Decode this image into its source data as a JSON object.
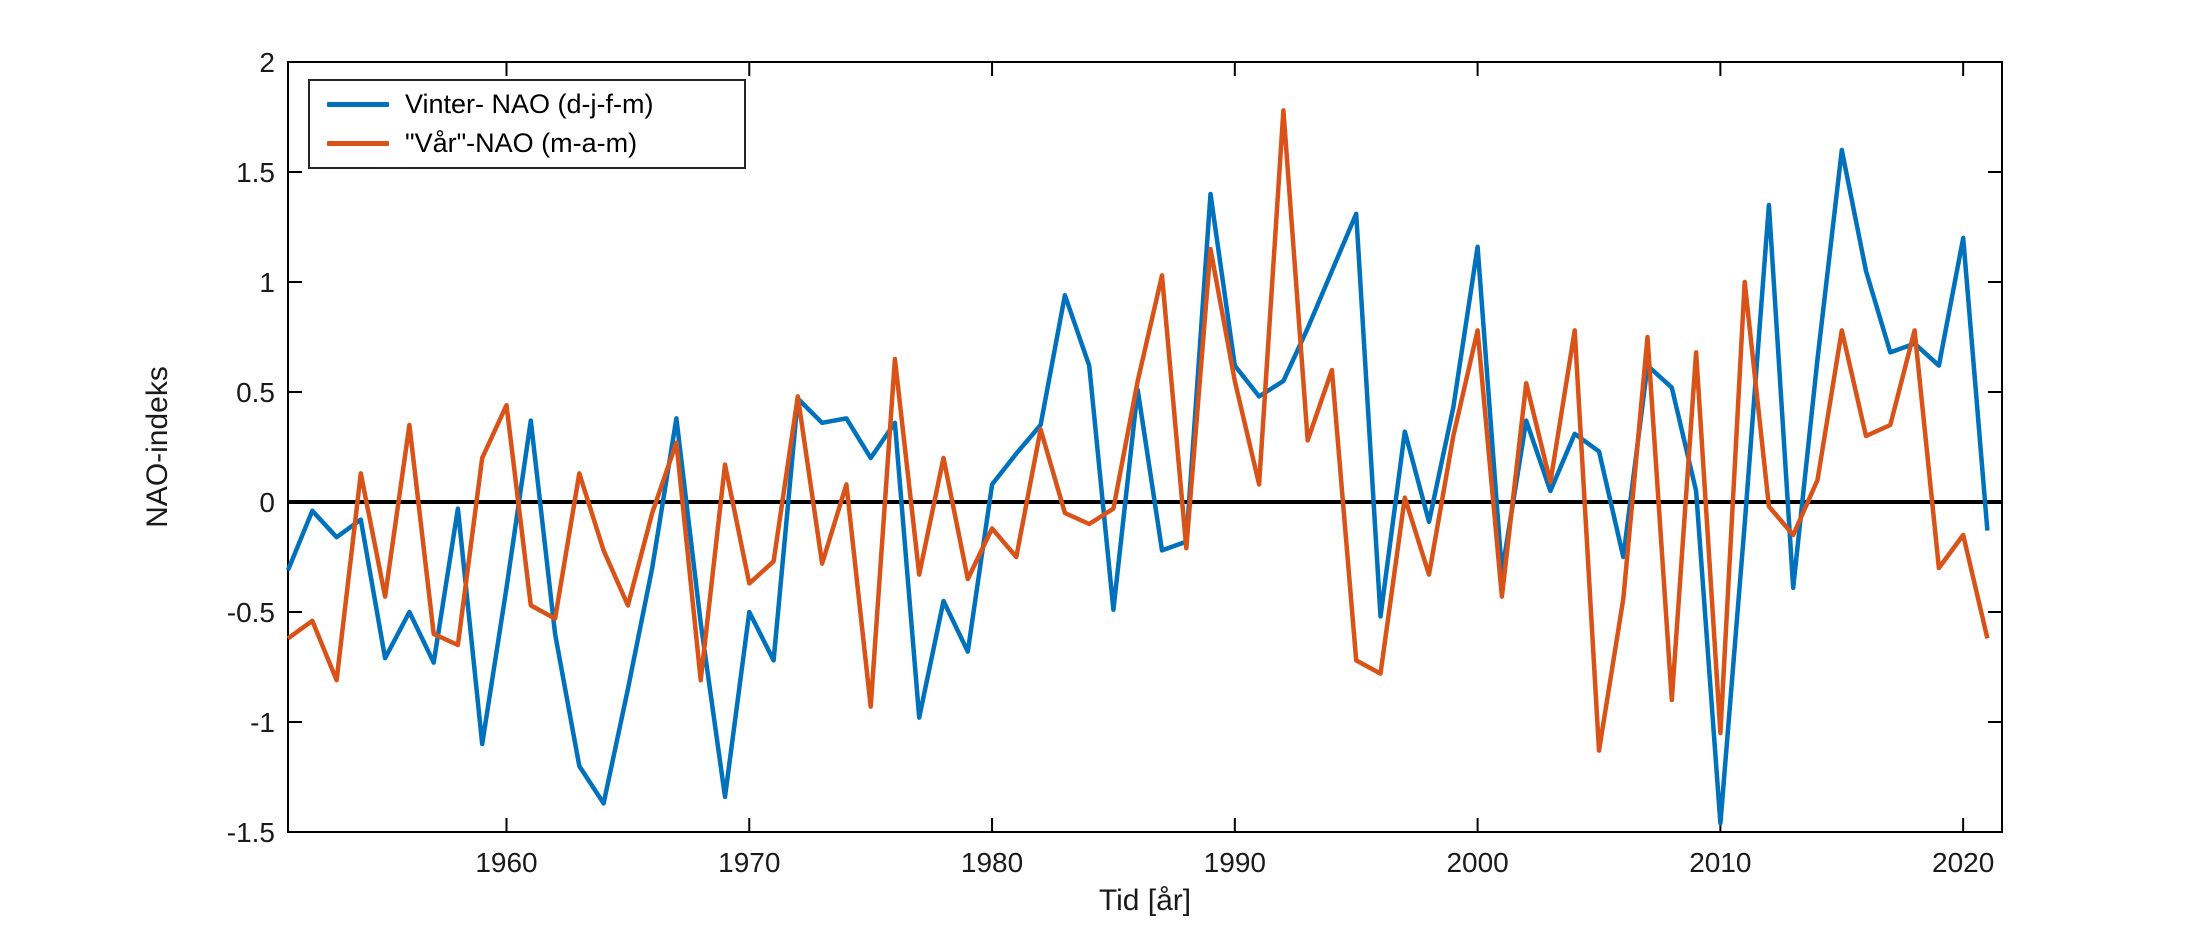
{
  "figure": {
    "background": "#ffffff",
    "xlabel": "Tid [år]",
    "ylabel": "NAO-indeks"
  },
  "legend": {
    "position": "top-left",
    "entries": [
      {
        "label": "Vinter- NAO (d-j-f-m)",
        "color": "#0072BD"
      },
      {
        "label": "\"Vår\"-NAO (m-a-m)",
        "color": "#D95319"
      }
    ]
  },
  "chart_data": {
    "type": "line",
    "title": "",
    "xlabel": "Tid [år]",
    "ylabel": "NAO-indeks",
    "xlim": [
      1951,
      2021.6
    ],
    "ylim": [
      -1.5,
      2
    ],
    "xticks": [
      1960,
      1970,
      1980,
      1990,
      2000,
      2010,
      2020
    ],
    "yticks": [
      -1.5,
      -1,
      -0.5,
      0,
      0.5,
      1,
      1.5,
      2
    ],
    "grid": false,
    "box": true,
    "zero_line": true,
    "zero_line_color": "#000000",
    "axis_color": "#000000",
    "legend_position": "top-left",
    "x": [
      1951,
      1952,
      1953,
      1954,
      1955,
      1956,
      1957,
      1958,
      1959,
      1960,
      1961,
      1962,
      1963,
      1964,
      1965,
      1966,
      1967,
      1968,
      1969,
      1970,
      1971,
      1972,
      1973,
      1974,
      1975,
      1976,
      1977,
      1978,
      1979,
      1980,
      1981,
      1982,
      1983,
      1984,
      1985,
      1986,
      1987,
      1988,
      1989,
      1990,
      1991,
      1992,
      1993,
      1994,
      1995,
      1996,
      1997,
      1998,
      1999,
      2000,
      2001,
      2002,
      2003,
      2004,
      2005,
      2006,
      2007,
      2008,
      2009,
      2010,
      2011,
      2012,
      2013,
      2014,
      2015,
      2016,
      2017,
      2018,
      2019,
      2020,
      2021
    ],
    "series": [
      {
        "name": "Vinter- NAO (d-j-f-m)",
        "color": "#0072BD",
        "values": [
          -0.31,
          -0.04,
          -0.16,
          -0.08,
          -0.71,
          -0.5,
          -0.73,
          -0.03,
          -1.1,
          -0.39,
          0.37,
          -0.6,
          -1.2,
          -1.37,
          -0.85,
          -0.3,
          0.38,
          -0.55,
          -1.34,
          -0.5,
          -0.72,
          0.47,
          0.36,
          0.38,
          0.2,
          0.36,
          -0.98,
          -0.45,
          -0.68,
          0.08,
          0.22,
          0.35,
          0.94,
          0.62,
          -0.49,
          0.51,
          -0.22,
          -0.18,
          1.4,
          0.62,
          0.48,
          0.55,
          0.79,
          1.05,
          1.31,
          -0.52,
          0.32,
          -0.09,
          0.43,
          1.16,
          -0.32,
          0.37,
          0.05,
          0.31,
          0.23,
          -0.25,
          0.62,
          0.52,
          0.05,
          -1.46,
          -0.1,
          1.35,
          -0.39,
          0.65,
          1.6,
          1.05,
          0.68,
          0.72,
          0.62,
          1.2,
          -0.13
        ]
      },
      {
        "name": "\"Vår\"-NAO (m-a-m)",
        "color": "#D95319",
        "values": [
          -0.62,
          -0.54,
          -0.81,
          0.13,
          -0.43,
          0.35,
          -0.6,
          -0.65,
          0.2,
          0.44,
          -0.47,
          -0.53,
          0.13,
          -0.22,
          -0.47,
          -0.05,
          0.27,
          -0.81,
          0.17,
          -0.37,
          -0.27,
          0.48,
          -0.28,
          0.08,
          -0.93,
          0.65,
          -0.33,
          0.2,
          -0.35,
          -0.12,
          -0.25,
          0.33,
          -0.05,
          -0.1,
          -0.03,
          0.55,
          1.03,
          -0.21,
          1.15,
          0.55,
          0.08,
          1.78,
          0.28,
          0.6,
          -0.72,
          -0.78,
          0.02,
          -0.33,
          0.3,
          0.78,
          -0.43,
          0.54,
          0.09,
          0.78,
          -1.13,
          -0.44,
          0.75,
          -0.9,
          0.68,
          -1.05,
          1.0,
          -0.02,
          -0.15,
          0.1,
          0.78,
          0.3,
          0.35,
          0.78,
          -0.3,
          -0.15,
          -0.62
        ]
      }
    ]
  }
}
